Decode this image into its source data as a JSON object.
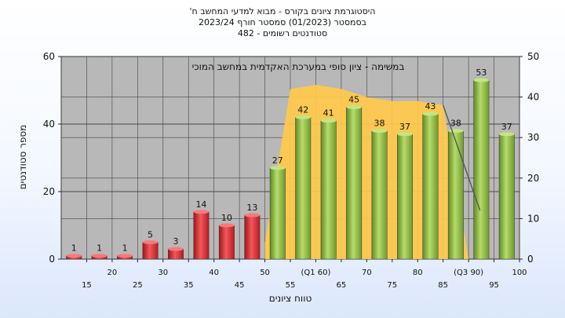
{
  "title": {
    "line1": "היסטוגרמת ציונים בקורס - מבוא למדעי המחשב ח'",
    "line2": "בסמסטר  (01/2023)  סמסטר חורף  2023/24",
    "line3": "סטודנטים רשומים - 482"
  },
  "colors": {
    "plot_bg": "#b8b8b8",
    "fail_bar": "#e8353a",
    "pass_bar": "#8fbd4a",
    "area": "#ffc94a",
    "line": "#555555"
  },
  "chart_data": {
    "type": "bar",
    "categories": [
      "15",
      "20",
      "25",
      "30",
      "35",
      "40",
      "45",
      "50",
      "55",
      "(Q1 60)",
      "65",
      "70",
      "75",
      "80",
      "85",
      "(Q3 90)",
      "95",
      "100"
    ],
    "values": [
      1,
      1,
      1,
      5,
      3,
      14,
      10,
      13,
      27,
      42,
      41,
      45,
      38,
      37,
      43,
      38,
      53,
      37
    ],
    "bar_groups": [
      "fail",
      "fail",
      "fail",
      "fail",
      "fail",
      "fail",
      "fail",
      "fail",
      "pass",
      "pass",
      "pass",
      "pass",
      "pass",
      "pass",
      "pass",
      "pass",
      "pass",
      "pass"
    ],
    "overlay_area": {
      "label": "במשימה - ציון סופי במערכת האקדמית במחשב המוכי",
      "start_index": 8,
      "values_right_axis": [
        4,
        42,
        43,
        42,
        40,
        39,
        39,
        38,
        0
      ]
    },
    "ylabel": "מספר סטודנטים",
    "xlabel": "טווח ציונים",
    "ylim": [
      0,
      60
    ],
    "y_ticks": [
      0,
      20,
      40,
      60
    ],
    "y2lim": [
      0,
      50
    ],
    "y2_ticks": [
      0,
      10,
      20,
      30,
      40,
      50
    ],
    "grid": true,
    "legend": "none"
  }
}
